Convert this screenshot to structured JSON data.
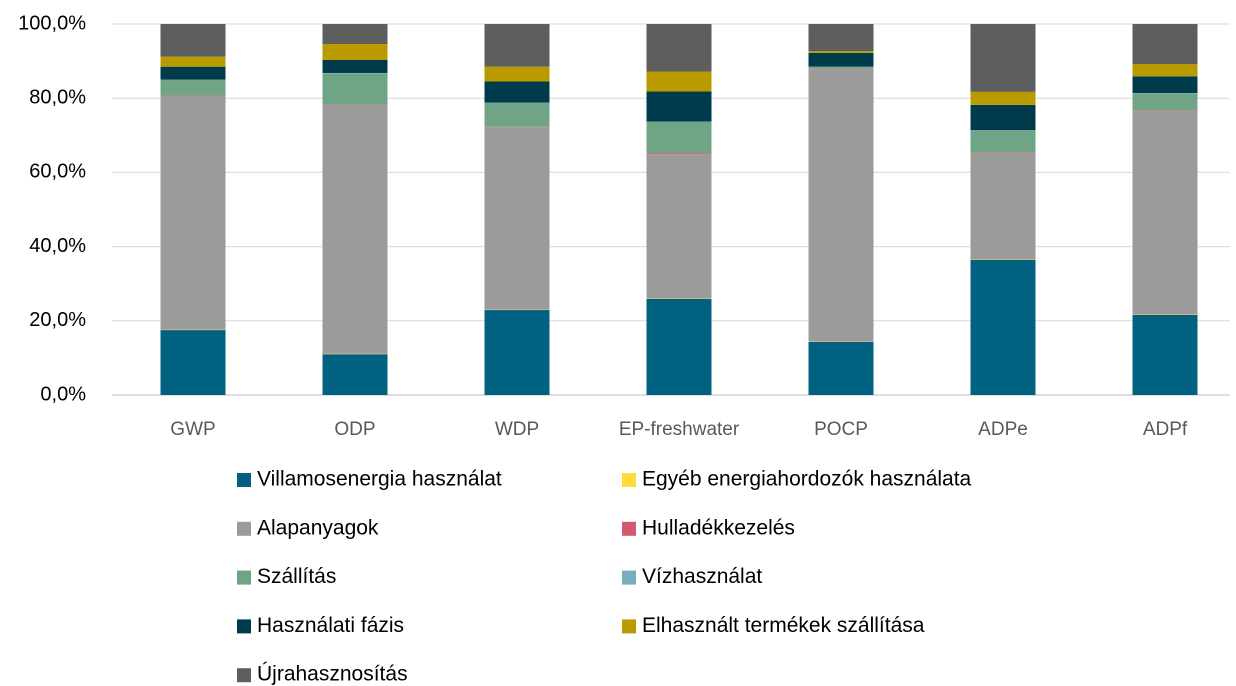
{
  "chart_data": {
    "type": "stacked_bar",
    "categories": [
      "GWP",
      "ODP",
      "WDP",
      "EP-freshwater",
      "POCP",
      "ADPe",
      "ADPf"
    ],
    "series": [
      {
        "name": "Villamosenergia használat",
        "color": "#006180",
        "values": [
          17.5,
          11,
          22.9,
          25.9,
          14.3,
          36.4,
          21.6
        ]
      },
      {
        "name": "Egyéb energiahordozók használata",
        "color": "#ffdc3c",
        "values": [
          0.1,
          0.1,
          0.1,
          0.1,
          0.1,
          0.1,
          0.1
        ]
      },
      {
        "name": "Alapanyagok",
        "color": "#9b9b9b",
        "values": [
          63.0,
          67.2,
          49.2,
          38.9,
          73.4,
          28.9,
          55.0
        ]
      },
      {
        "name": "Hulladékkezelés",
        "color": "#d35a6e",
        "values": [
          0.1,
          0.1,
          0.1,
          0.3,
          0.1,
          0.1,
          0.1
        ]
      },
      {
        "name": "Szállítás",
        "color": "#6fa584",
        "values": [
          4.2,
          8.3,
          6.4,
          8.4,
          0.5,
          5.8,
          4.5
        ]
      },
      {
        "name": "Vízhasználat",
        "color": "#7aacbf",
        "values": [
          0.1,
          0.1,
          0.1,
          0.1,
          0.1,
          0.1,
          0.1
        ]
      },
      {
        "name": "Használati fázis",
        "color": "#003b4b",
        "values": [
          3.5,
          3.5,
          5.7,
          8.1,
          3.7,
          6.8,
          4.5
        ]
      },
      {
        "name": "Elhasznált termékek szállítása",
        "color": "#b99b00",
        "values": [
          2.7,
          4.3,
          4.0,
          5.4,
          0.5,
          3.5,
          3.3
        ]
      },
      {
        "name": "Újrahasznosítás",
        "color": "#5e5e5e",
        "values": [
          8.8,
          5.4,
          11.5,
          12.8,
          7.3,
          18.3,
          10.8
        ]
      }
    ],
    "ylim": [
      0,
      100
    ],
    "yticks": [
      {
        "value": 0,
        "label": "0,0%"
      },
      {
        "value": 20,
        "label": "20,0%"
      },
      {
        "value": 40,
        "label": "40,0%"
      },
      {
        "value": 60,
        "label": "60,0%"
      },
      {
        "value": 80,
        "label": "80,0%"
      },
      {
        "value": 100,
        "label": "100,0%"
      }
    ],
    "grid": true,
    "legend": "bottom"
  }
}
